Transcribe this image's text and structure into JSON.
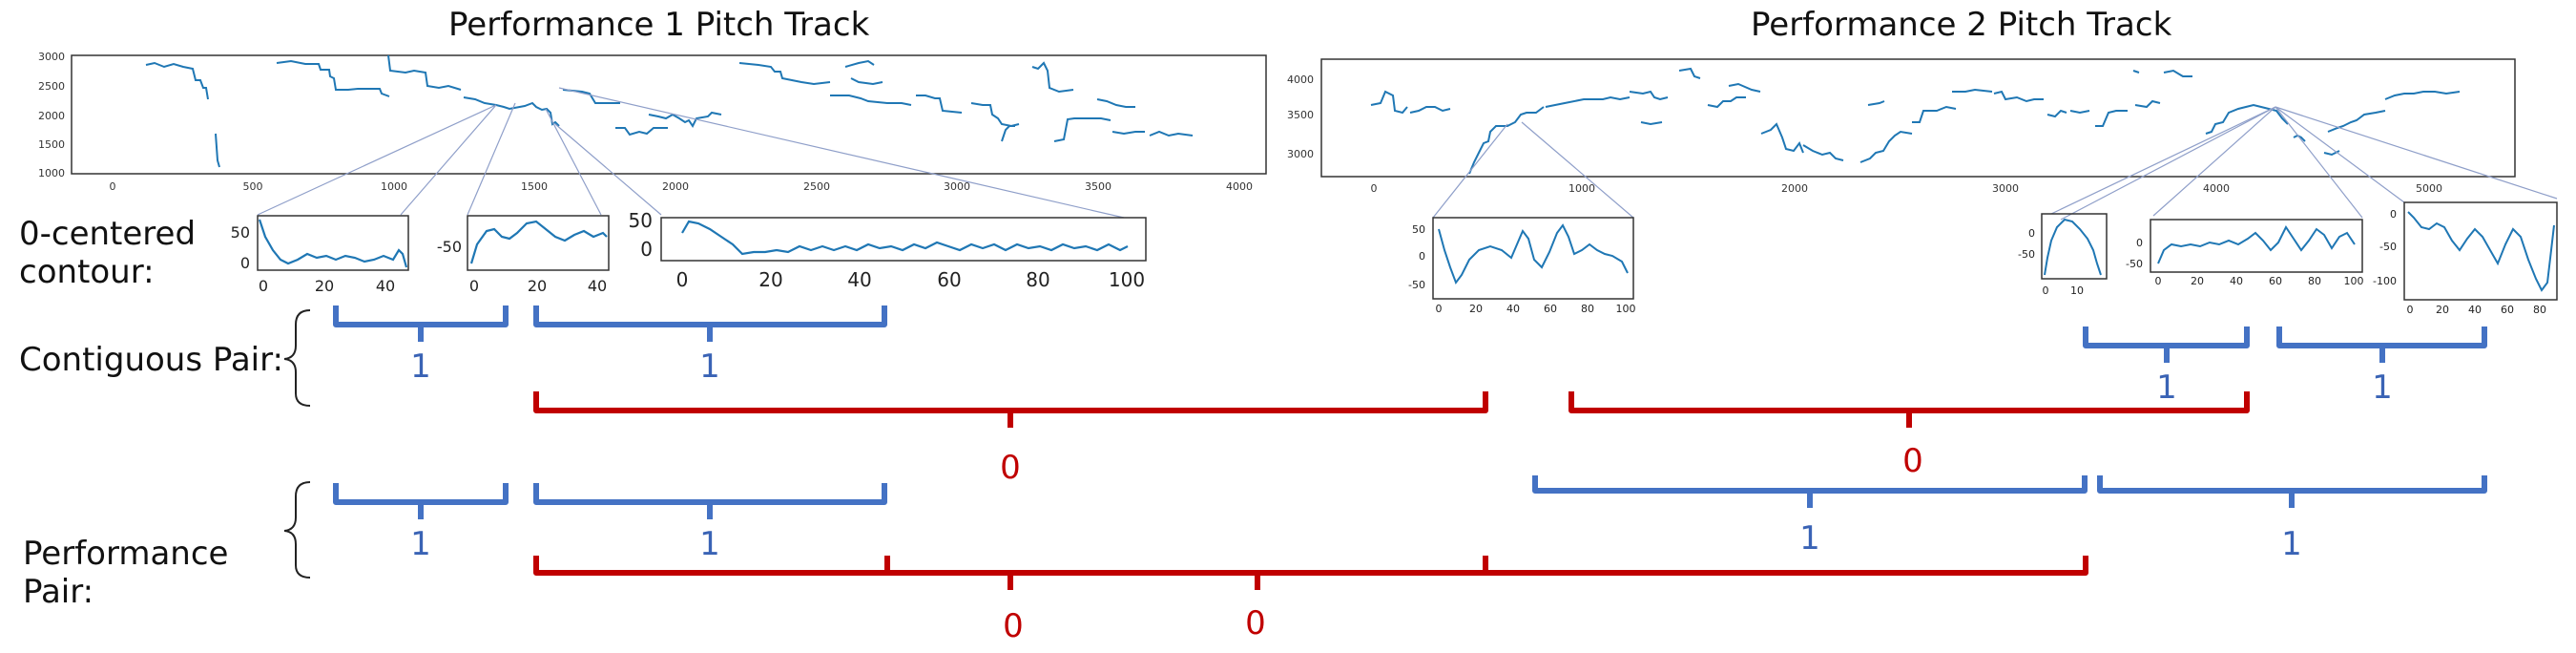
{
  "titles": {
    "perf1": "Performance 1 Pitch Track",
    "perf2": "Performance 2 Pitch Track"
  },
  "row_labels": {
    "contour_line1": "0-centered",
    "contour_line2": "contour:",
    "contiguous": "Contiguous Pair:",
    "performance_line1": "Performance",
    "performance_line2": "Pair:"
  },
  "main_plots": {
    "perf1": {
      "x_ticks": [
        "0",
        "500",
        "1000",
        "1500",
        "2000",
        "2500",
        "3000",
        "3500",
        "4000"
      ],
      "y_ticks": [
        "1000",
        "1500",
        "2000",
        "2500",
        "3000"
      ]
    },
    "perf2": {
      "x_ticks": [
        "0",
        "1000",
        "2000",
        "3000",
        "4000",
        "5000"
      ],
      "y_ticks": [
        "3000",
        "3500",
        "4000"
      ]
    }
  },
  "contours": {
    "p1a": {
      "x_ticks": [
        "0",
        "20",
        "40"
      ],
      "y_ticks": [
        "50",
        "0"
      ]
    },
    "p1b": {
      "x_ticks": [
        "0",
        "20",
        "40"
      ],
      "y_ticks": [
        "-50"
      ]
    },
    "p1c": {
      "x_ticks": [
        "0",
        "20",
        "40",
        "60",
        "80",
        "100"
      ],
      "y_ticks": [
        "50",
        "0"
      ]
    },
    "p2a": {
      "x_ticks": [
        "0",
        "20",
        "40",
        "60",
        "80",
        "100"
      ],
      "y_ticks": [
        "50",
        "0",
        "-50"
      ]
    },
    "p2b": {
      "x_ticks": [
        "0",
        "10"
      ],
      "y_ticks": [
        "0",
        "-50"
      ]
    },
    "p2c": {
      "x_ticks": [
        "0",
        "20",
        "40",
        "60",
        "80",
        "100"
      ],
      "y_ticks": [
        "0",
        "-50"
      ]
    },
    "p2d": {
      "x_ticks": [
        "0",
        "20",
        "40",
        "60",
        "80"
      ],
      "y_ticks": [
        "0",
        "-50",
        "-100"
      ]
    }
  },
  "pair_values": {
    "contiguous": {
      "blue_p1a": "1",
      "blue_p1b": "1",
      "red_p1": "0",
      "red_p2": "0",
      "blue_p2a": "1",
      "blue_p2b": "1"
    },
    "performance": {
      "blue_p1a": "1",
      "blue_p1b": "1",
      "red_a": "0",
      "red_b": "0",
      "blue_p2a": "1",
      "blue_p2b": "1"
    }
  },
  "colors": {
    "line": "#1f77b4",
    "pos_bracket": "#4472c4",
    "neg_bracket": "#c00000",
    "zoom_line": "#8f9fc9"
  }
}
